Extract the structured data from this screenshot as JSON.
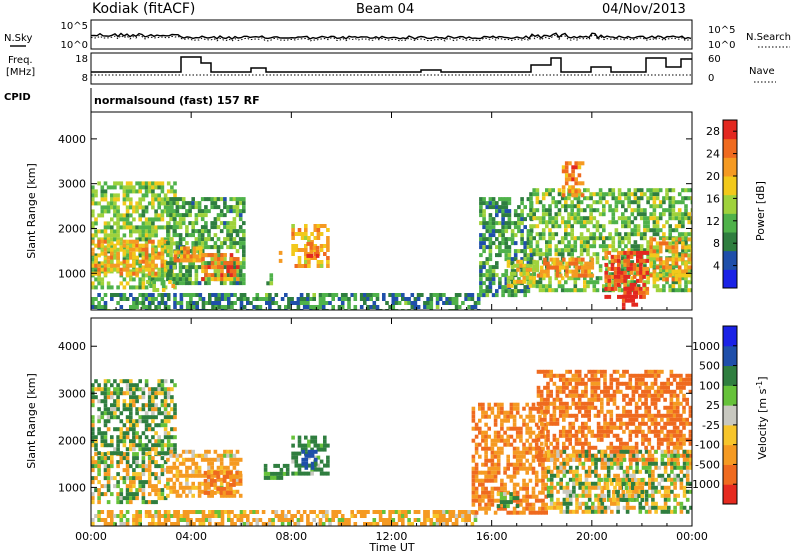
{
  "header": {
    "station": "Kodiak (fitACF)",
    "beam": "Beam 04",
    "date": "04/Nov/2013"
  },
  "noise_panel": {
    "left_label": "N.Sky",
    "left_ticks": [
      "10^5",
      "10^0"
    ],
    "right_ticks": [
      "10^5",
      "10^0"
    ],
    "right_label": "N.Search"
  },
  "freq_panel": {
    "left_label_line1": "Freq.",
    "left_label_line2": "[MHz]",
    "left_ticks": [
      "18",
      "8"
    ],
    "right_ticks": [
      "60",
      "0"
    ],
    "right_label": "Nave"
  },
  "cpid_panel": {
    "label": "CPID",
    "program": "normalsound (fast) 157 RF"
  },
  "x_axis": {
    "ticks": [
      "00:00",
      "04:00",
      "08:00",
      "12:00",
      "16:00",
      "20:00",
      "00:00"
    ],
    "label": "Time UT",
    "tick_hours": [
      0,
      4,
      8,
      12,
      16,
      20,
      24
    ]
  },
  "chart_data": [
    {
      "type": "heatmap",
      "quantity": "Power",
      "ylabel": "Slant Range [km]",
      "yticks": [
        "4000",
        "3000",
        "2000",
        "1000"
      ],
      "ytick_values": [
        4000,
        3000,
        2000,
        1000
      ],
      "ylim": [
        180,
        4600
      ],
      "xlim": [
        0,
        24
      ],
      "colorbar_label": "Power [dB]",
      "colorbar_ticks": [
        "28",
        "24",
        "20",
        "16",
        "12",
        "8",
        "4"
      ],
      "colorbar_tick_values": [
        28,
        24,
        20,
        16,
        12,
        8,
        4
      ],
      "colorbar_range": [
        0,
        30
      ],
      "colors": [
        "#1a22e6",
        "#1f4faa",
        "#2f7e3f",
        "#4fb24a",
        "#9fd23c",
        "#f2c91b",
        "#f59a22",
        "#ef6a1f",
        "#e32820"
      ],
      "regions": [
        {
          "x0": 0.0,
          "x1": 3.4,
          "y0": 650,
          "y1": 3050,
          "level": 14
        },
        {
          "x0": 0.0,
          "x1": 3.0,
          "y0": 950,
          "y1": 1750,
          "level": 20
        },
        {
          "x0": 3.0,
          "x1": 6.1,
          "y0": 800,
          "y1": 2700,
          "level": 11
        },
        {
          "x0": 3.3,
          "x1": 4.4,
          "y0": 1250,
          "y1": 1600,
          "level": 22
        },
        {
          "x0": 4.4,
          "x1": 5.9,
          "y0": 900,
          "y1": 1450,
          "level": 24
        },
        {
          "x0": 2.2,
          "x1": 3.3,
          "y0": 650,
          "y1": 850,
          "level": 16
        },
        {
          "x0": 7.0,
          "x1": 7.2,
          "y0": 750,
          "y1": 1000,
          "level": 12
        },
        {
          "x0": 7.5,
          "x1": 7.6,
          "y0": 1300,
          "y1": 1500,
          "level": 18
        },
        {
          "x0": 8.0,
          "x1": 9.4,
          "y0": 1150,
          "y1": 2100,
          "level": 20
        },
        {
          "x0": 8.6,
          "x1": 9.1,
          "y0": 1350,
          "y1": 1700,
          "level": 25
        },
        {
          "x0": 0.0,
          "x1": 15.5,
          "y0": 200,
          "y1": 560,
          "level": 9
        },
        {
          "x0": 15.5,
          "x1": 17.6,
          "y0": 500,
          "y1": 2700,
          "level": 10
        },
        {
          "x0": 16.6,
          "x1": 17.8,
          "y0": 700,
          "y1": 1300,
          "level": 18
        },
        {
          "x0": 17.5,
          "x1": 24.0,
          "y0": 650,
          "y1": 2900,
          "level": 13
        },
        {
          "x0": 17.8,
          "x1": 20.0,
          "y0": 950,
          "y1": 1350,
          "level": 22
        },
        {
          "x0": 20.5,
          "x1": 22.2,
          "y0": 500,
          "y1": 1500,
          "level": 26
        },
        {
          "x0": 21.2,
          "x1": 21.8,
          "y0": 250,
          "y1": 700,
          "level": 29
        },
        {
          "x0": 18.8,
          "x1": 19.6,
          "y0": 2700,
          "y1": 3500,
          "level": 23
        },
        {
          "x0": 22.3,
          "x1": 24.0,
          "y0": 900,
          "y1": 1800,
          "level": 20
        }
      ]
    },
    {
      "type": "heatmap",
      "quantity": "Velocity",
      "ylabel": "Slant Range [km]",
      "yticks": [
        "4000",
        "3000",
        "2000",
        "1000"
      ],
      "ytick_values": [
        4000,
        3000,
        2000,
        1000
      ],
      "ylim": [
        180,
        4600
      ],
      "xlim": [
        0,
        24
      ],
      "colorbar_label": "Velocity [m s^-1]",
      "colorbar_ticks": [
        "1000",
        "500",
        "100",
        "25",
        "-25",
        "-100",
        "-500",
        "-1000"
      ],
      "colorbar_range": [
        -1200,
        1200
      ],
      "colors": [
        "#e62a1f",
        "#ef6a1f",
        "#f59a22",
        "#f7c52b",
        "#c8c8c0",
        "#66c23a",
        "#2f7e3f",
        "#1f4faa",
        "#1a22e6"
      ],
      "regions": [
        {
          "x0": 0.0,
          "x1": 3.0,
          "y0": 700,
          "y1": 1750,
          "level": 0
        },
        {
          "x0": 0.0,
          "x1": 3.4,
          "y0": 1750,
          "y1": 3300,
          "level": 120
        },
        {
          "x0": 3.0,
          "x1": 6.0,
          "y0": 800,
          "y1": 1800,
          "level": -200
        },
        {
          "x0": 4.5,
          "x1": 6.0,
          "y0": 850,
          "y1": 1350,
          "level": -500
        },
        {
          "x0": 6.9,
          "x1": 7.8,
          "y0": 1200,
          "y1": 1500,
          "level": 300
        },
        {
          "x0": 8.0,
          "x1": 9.4,
          "y0": 1250,
          "y1": 2100,
          "level": 250
        },
        {
          "x0": 8.4,
          "x1": 9.0,
          "y0": 1400,
          "y1": 1800,
          "level": 700
        },
        {
          "x0": 0.0,
          "x1": 15.5,
          "y0": 200,
          "y1": 520,
          "level": -150
        },
        {
          "x0": 15.2,
          "x1": 18.2,
          "y0": 500,
          "y1": 2800,
          "level": -450
        },
        {
          "x0": 16.2,
          "x1": 17.0,
          "y0": 600,
          "y1": 900,
          "level": 120
        },
        {
          "x0": 17.8,
          "x1": 24.0,
          "y0": 1600,
          "y1": 3500,
          "level": -600
        },
        {
          "x0": 18.2,
          "x1": 24.0,
          "y0": 500,
          "y1": 1800,
          "level": 0
        },
        {
          "x0": 20.3,
          "x1": 22.0,
          "y0": 700,
          "y1": 1200,
          "level": -30
        }
      ]
    }
  ]
}
